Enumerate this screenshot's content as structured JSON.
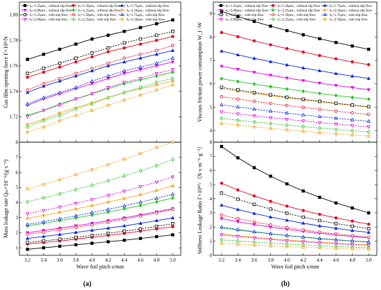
{
  "styles": {
    "1.25": {
      "color": "#000000",
      "marker": "square"
    },
    "1.50": {
      "color": "#e8001c",
      "marker": "circle"
    },
    "1.75": {
      "color": "#0022dd",
      "marker": "triangle-up"
    },
    "2.00": {
      "color": "#e000e0",
      "marker": "triangle-down"
    },
    "2.25": {
      "color": "#20c020",
      "marker": "diamond"
    },
    "2.50": {
      "color": "#f5a623",
      "marker": "star"
    }
  },
  "panel_labels": {
    "a": "(a)",
    "b": "(b)"
  },
  "chart_data": [
    {
      "id": "a-top",
      "type": "line",
      "ylabel": "Gas film opening force F×10³/N",
      "xlabel": "",
      "x": [
        3.2,
        3.4,
        3.6,
        3.8,
        4.0,
        4.2,
        4.4,
        4.6,
        4.8,
        5.0
      ],
      "xlim": [
        3.1,
        5.1
      ],
      "ylim": [
        1.7,
        1.81
      ],
      "yticks": [
        "1.72",
        "1.74",
        "1.76",
        "1.78",
        "1.80"
      ],
      "xticks": [],
      "legend_position": "top-left",
      "series": [
        {
          "name": "hₐ=1.25μm，without slip flow",
          "key": "1.25",
          "dashed": false,
          "values": [
            1.765,
            1.769,
            1.773,
            1.777,
            1.781,
            1.784,
            1.787,
            1.79,
            1.793,
            1.796
          ]
        },
        {
          "name": "hₐ=1.50μm，without slip flow",
          "key": "1.50",
          "dashed": false,
          "values": [
            1.751,
            1.755,
            1.759,
            1.763,
            1.767,
            1.771,
            1.774,
            1.777,
            1.78,
            1.783
          ]
        },
        {
          "name": "hₐ=1.75μm，without slip flow",
          "key": "1.75",
          "dashed": false,
          "values": [
            1.739,
            1.744,
            1.748,
            1.752,
            1.756,
            1.76,
            1.763,
            1.766,
            1.769,
            1.772
          ]
        },
        {
          "name": "hₐ=2.00μm，without slip flow",
          "key": "2.00",
          "dashed": false,
          "values": [
            1.729,
            1.734,
            1.738,
            1.742,
            1.746,
            1.75,
            1.754,
            1.757,
            1.76,
            1.763
          ]
        },
        {
          "name": "hₐ=2.25μm，without slip flow",
          "key": "2.25",
          "dashed": false,
          "values": [
            1.721,
            1.725,
            1.73,
            1.734,
            1.738,
            1.742,
            1.746,
            1.749,
            1.752,
            1.755
          ]
        },
        {
          "name": "hₐ=2.50μm，without slip flow",
          "key": "2.50",
          "dashed": false,
          "values": [
            1.714,
            1.718,
            1.723,
            1.727,
            1.731,
            1.735,
            1.739,
            1.742,
            1.745,
            1.748
          ]
        },
        {
          "name": "hₐ=1.25μm，with slip flow",
          "key": "1.25",
          "dashed": true,
          "values": [
            1.754,
            1.758,
            1.762,
            1.766,
            1.77,
            1.774,
            1.778,
            1.781,
            1.784,
            1.787
          ]
        },
        {
          "name": "hₐ=1.50μm，with slip flow",
          "key": "1.50",
          "dashed": true,
          "values": [
            1.741,
            1.746,
            1.75,
            1.754,
            1.758,
            1.762,
            1.766,
            1.769,
            1.772,
            1.776
          ]
        },
        {
          "name": "hₐ=1.75μm，with slip flow",
          "key": "1.75",
          "dashed": true,
          "values": [
            1.73,
            1.735,
            1.739,
            1.743,
            1.748,
            1.752,
            1.756,
            1.759,
            1.762,
            1.766
          ]
        },
        {
          "name": "hₐ=2.00μm，with slip flow",
          "key": "2.00",
          "dashed": true,
          "values": [
            1.72,
            1.725,
            1.729,
            1.734,
            1.738,
            1.743,
            1.747,
            1.75,
            1.754,
            1.757
          ]
        },
        {
          "name": "hₐ=2.25μm，with slip flow",
          "key": "2.25",
          "dashed": true,
          "values": [
            1.712,
            1.717,
            1.721,
            1.726,
            1.73,
            1.735,
            1.739,
            1.743,
            1.747,
            1.75
          ]
        },
        {
          "name": "hₐ=2.50μm，with slip flow",
          "key": "2.50",
          "dashed": true,
          "values": [
            1.708,
            1.712,
            1.717,
            1.721,
            1.725,
            1.729,
            1.733,
            1.737,
            1.741,
            1.745
          ]
        }
      ]
    },
    {
      "id": "a-bottom",
      "type": "line",
      "ylabel": "Mass leakage rate Qₘ×10⁻²/(g·s⁻¹)",
      "xlabel": "Wave foil pitch s/mm",
      "x": [
        3.2,
        3.4,
        3.6,
        3.8,
        4.0,
        4.2,
        4.4,
        4.6,
        4.8,
        5.0
      ],
      "xlim": [
        3.1,
        5.1
      ],
      "ylim": [
        0.5,
        8.0
      ],
      "yticks": [
        "1",
        "2",
        "3",
        "4",
        "5",
        "6",
        "7",
        "8"
      ],
      "xticks": [
        "3.2",
        "3.4",
        "3.6",
        "3.8",
        "4.0",
        "4.2",
        "4.4",
        "4.6",
        "4.8",
        "5.0"
      ],
      "series": [
        {
          "key": "1.25",
          "dashed": false,
          "values": [
            0.9,
            1.0,
            1.1,
            1.2,
            1.3,
            1.4,
            1.5,
            1.62,
            1.74,
            1.86
          ]
        },
        {
          "key": "1.50",
          "dashed": false,
          "values": [
            1.25,
            1.35,
            1.45,
            1.57,
            1.7,
            1.82,
            1.95,
            2.1,
            2.25,
            2.4
          ]
        },
        {
          "key": "1.75",
          "dashed": false,
          "values": [
            1.62,
            1.75,
            1.88,
            2.02,
            2.16,
            2.3,
            2.45,
            2.62,
            2.8,
            2.98
          ]
        },
        {
          "key": "2.00",
          "dashed": false,
          "values": [
            2.0,
            2.15,
            2.3,
            2.46,
            2.62,
            2.8,
            2.98,
            3.18,
            3.38,
            3.6
          ]
        },
        {
          "key": "2.25",
          "dashed": false,
          "values": [
            2.45,
            2.62,
            2.8,
            2.98,
            3.17,
            3.37,
            3.58,
            3.8,
            4.05,
            4.3
          ]
        },
        {
          "key": "2.50",
          "dashed": false,
          "values": [
            2.95,
            3.15,
            3.35,
            3.57,
            3.8,
            4.03,
            4.27,
            4.52,
            4.8,
            5.1
          ]
        },
        {
          "key": "1.25",
          "dashed": true,
          "values": [
            1.35,
            1.46,
            1.57,
            1.69,
            1.82,
            1.96,
            2.1,
            2.25,
            2.42,
            2.6
          ]
        },
        {
          "key": "1.50",
          "dashed": true,
          "values": [
            1.9,
            2.04,
            2.19,
            2.35,
            2.52,
            2.7,
            2.89,
            3.1,
            3.32,
            3.55
          ]
        },
        {
          "key": "1.75",
          "dashed": true,
          "values": [
            2.55,
            2.73,
            2.92,
            3.12,
            3.33,
            3.55,
            3.78,
            4.02,
            4.28,
            4.55
          ]
        },
        {
          "key": "2.00",
          "dashed": true,
          "values": [
            3.25,
            3.47,
            3.7,
            3.95,
            4.2,
            4.47,
            4.75,
            5.05,
            5.35,
            5.7
          ]
        },
        {
          "key": "2.25",
          "dashed": true,
          "values": [
            4.05,
            4.31,
            4.58,
            4.86,
            5.15,
            5.45,
            5.77,
            6.1,
            6.45,
            6.85
          ]
        },
        {
          "key": "2.50",
          "dashed": true,
          "values": [
            4.9,
            5.2,
            5.52,
            5.85,
            6.18,
            6.52,
            6.88,
            7.25,
            7.65,
            8.0
          ]
        }
      ]
    },
    {
      "id": "b-top",
      "type": "line",
      "ylabel": "Viscous friction power consumption W_f /W",
      "xlabel": "",
      "x": [
        3.2,
        3.4,
        3.6,
        3.8,
        4.0,
        4.2,
        4.4,
        4.6,
        4.8,
        5.0
      ],
      "xlim": [
        3.1,
        5.1
      ],
      "ylim": [
        3.5,
        9.5
      ],
      "yticks": [
        "4",
        "5",
        "6",
        "7",
        "8",
        "9"
      ],
      "xticks": [],
      "legend_position": "top",
      "series": [
        {
          "name": "hₐ=1.25μm，without slip flow",
          "key": "1.25",
          "dashed": false,
          "values": [
            9.1,
            8.88,
            8.67,
            8.47,
            8.28,
            8.1,
            7.93,
            7.77,
            7.62,
            7.48
          ]
        },
        {
          "name": "hₐ=1.50μm，without slip flow",
          "key": "1.50",
          "dashed": false,
          "values": [
            8.2,
            8.02,
            7.84,
            7.67,
            7.51,
            7.36,
            7.21,
            7.07,
            6.94,
            6.82
          ]
        },
        {
          "name": "hₐ=1.75μm，without slip flow",
          "key": "1.75",
          "dashed": false,
          "values": [
            7.4,
            7.24,
            7.09,
            6.95,
            6.81,
            6.68,
            6.56,
            6.44,
            6.33,
            6.23
          ]
        },
        {
          "name": "hₐ=2.00μm，without slip flow",
          "key": "2.00",
          "dashed": false,
          "values": [
            6.75,
            6.62,
            6.49,
            6.37,
            6.25,
            6.14,
            6.03,
            5.93,
            5.84,
            5.75
          ]
        },
        {
          "name": "hₐ=2.25μm，without slip flow",
          "key": "2.25",
          "dashed": false,
          "values": [
            6.22,
            6.1,
            5.99,
            5.88,
            5.78,
            5.68,
            5.59,
            5.5,
            5.42,
            5.34
          ]
        },
        {
          "name": "hₐ=2.50μm，without slip flow",
          "key": "2.50",
          "dashed": false,
          "values": [
            5.8,
            5.69,
            5.59,
            5.49,
            5.4,
            5.31,
            5.23,
            5.15,
            5.08,
            5.01
          ]
        },
        {
          "name": "hₐ=1.25μm，with slip flow",
          "key": "1.25",
          "dashed": true,
          "values": [
            5.85,
            5.74,
            5.63,
            5.53,
            5.43,
            5.34,
            5.25,
            5.17,
            5.09,
            5.02
          ]
        },
        {
          "name": "hₐ=1.50μm，with slip flow",
          "key": "1.50",
          "dashed": true,
          "values": [
            5.45,
            5.35,
            5.25,
            5.16,
            5.07,
            4.99,
            4.91,
            4.83,
            4.76,
            4.69
          ]
        },
        {
          "name": "hₐ=1.75μm，with slip flow",
          "key": "1.75",
          "dashed": true,
          "values": [
            5.1,
            5.01,
            4.92,
            4.83,
            4.75,
            4.67,
            4.6,
            4.53,
            4.46,
            4.4
          ]
        },
        {
          "name": "hₐ=2.00μm，with slip flow",
          "key": "2.00",
          "dashed": true,
          "values": [
            4.8,
            4.71,
            4.63,
            4.55,
            4.48,
            4.41,
            4.34,
            4.28,
            4.22,
            4.16
          ]
        },
        {
          "name": "hₐ=2.25μm，with slip flow",
          "key": "2.25",
          "dashed": true,
          "values": [
            4.52,
            4.44,
            4.37,
            4.3,
            4.23,
            4.17,
            4.11,
            4.05,
            3.99,
            3.94
          ]
        },
        {
          "name": "hₐ=2.50μm，with slip flow",
          "key": "2.50",
          "dashed": true,
          "values": [
            4.3,
            4.23,
            4.16,
            4.09,
            4.03,
            3.97,
            3.91,
            3.86,
            3.81,
            3.76
          ]
        }
      ]
    },
    {
      "id": "b-bottom",
      "type": "line",
      "ylabel": "Stiffness Leakage Ratio Γ×10¹⁰/（N·s·m⁻¹·g⁻¹）",
      "xlabel": "Wave foil pitch s/mm",
      "x": [
        3.2,
        3.4,
        3.6,
        3.8,
        4.0,
        4.2,
        4.4,
        4.6,
        4.8,
        5.0
      ],
      "xlim": [
        3.1,
        5.1
      ],
      "ylim": [
        0,
        8
      ],
      "yticks": [
        "0",
        "1",
        "2",
        "3",
        "4",
        "5",
        "6",
        "7",
        "8"
      ],
      "xticks": [
        "3.2",
        "3.4",
        "3.6",
        "3.8",
        "4.0",
        "4.2",
        "4.4",
        "4.6",
        "4.8",
        "5.0"
      ],
      "series": [
        {
          "key": "1.25",
          "dashed": false,
          "values": [
            7.7,
            6.9,
            6.2,
            5.6,
            5.05,
            4.55,
            4.1,
            3.7,
            3.35,
            3.0
          ]
        },
        {
          "key": "1.50",
          "dashed": false,
          "values": [
            5.1,
            4.62,
            4.2,
            3.82,
            3.48,
            3.17,
            2.9,
            2.65,
            2.42,
            2.2
          ]
        },
        {
          "key": "1.75",
          "dashed": false,
          "values": [
            3.55,
            3.24,
            2.96,
            2.71,
            2.48,
            2.27,
            2.08,
            1.91,
            1.75,
            1.62
          ]
        },
        {
          "key": "2.00",
          "dashed": false,
          "values": [
            2.6,
            2.38,
            2.18,
            2.0,
            1.84,
            1.69,
            1.56,
            1.44,
            1.33,
            1.23
          ]
        },
        {
          "key": "2.25",
          "dashed": false,
          "values": [
            1.95,
            1.79,
            1.65,
            1.52,
            1.4,
            1.29,
            1.19,
            1.1,
            1.02,
            0.95
          ]
        },
        {
          "key": "2.50",
          "dashed": false,
          "values": [
            1.5,
            1.38,
            1.27,
            1.17,
            1.08,
            1.0,
            0.93,
            0.86,
            0.8,
            0.75
          ]
        },
        {
          "key": "1.25",
          "dashed": true,
          "values": [
            4.4,
            3.97,
            3.6,
            3.27,
            2.97,
            2.7,
            2.46,
            2.25,
            2.06,
            1.88
          ]
        },
        {
          "key": "1.50",
          "dashed": true,
          "values": [
            2.85,
            2.59,
            2.36,
            2.15,
            1.96,
            1.79,
            1.64,
            1.51,
            1.39,
            1.28
          ]
        },
        {
          "key": "1.75",
          "dashed": true,
          "values": [
            2.0,
            1.83,
            1.67,
            1.53,
            1.4,
            1.29,
            1.18,
            1.09,
            1.01,
            0.93
          ]
        },
        {
          "key": "2.00",
          "dashed": true,
          "values": [
            1.45,
            1.33,
            1.22,
            1.12,
            1.03,
            0.95,
            0.88,
            0.81,
            0.75,
            0.7
          ]
        },
        {
          "key": "2.25",
          "dashed": true,
          "values": [
            1.1,
            1.01,
            0.93,
            0.86,
            0.79,
            0.73,
            0.68,
            0.63,
            0.58,
            0.54
          ]
        },
        {
          "key": "2.50",
          "dashed": true,
          "values": [
            0.85,
            0.78,
            0.72,
            0.66,
            0.61,
            0.57,
            0.53,
            0.49,
            0.46,
            0.43
          ]
        }
      ]
    }
  ]
}
